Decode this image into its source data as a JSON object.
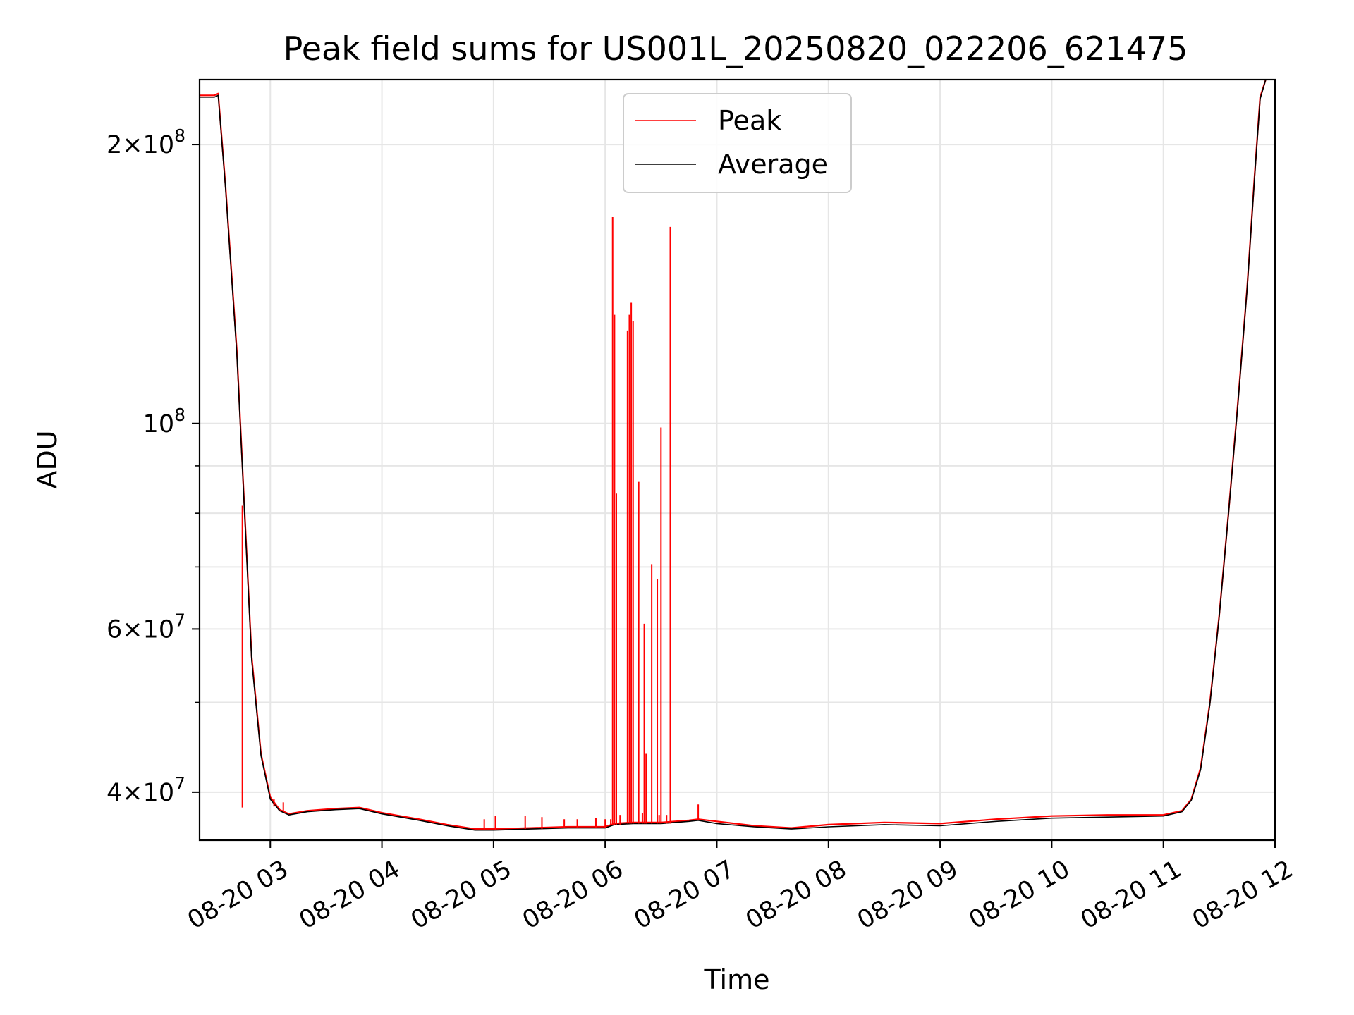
{
  "chart_data": {
    "type": "line",
    "title": "Peak field sums for US001L_20250820_022206_621475",
    "xlabel": "Time",
    "ylabel": "ADU",
    "y_scale": "log",
    "grid": true,
    "legend_position": "top-center",
    "xlim": [
      "08-20 02:22",
      "08-20 12:00"
    ],
    "ylim": [
      35500000,
      235000000
    ],
    "x_ticks": [
      "08-20 03",
      "08-20 04",
      "08-20 05",
      "08-20 06",
      "08-20 07",
      "08-20 08",
      "08-20 09",
      "08-20 10",
      "08-20 11",
      "08-20 12"
    ],
    "y_ticks": [
      {
        "value": 200000000,
        "mantissa": "2",
        "exponent": "8"
      },
      {
        "value": 100000000,
        "mantissa": "",
        "exponent": "8"
      },
      {
        "value": 60000000,
        "mantissa": "6",
        "exponent": "7"
      },
      {
        "value": 40000000,
        "mantissa": "4",
        "exponent": "7"
      }
    ],
    "series": [
      {
        "name": "Peak",
        "color": "#ff0000",
        "x": [
          "08-20 02:22",
          "08-20 02:30",
          "08-20 02:32",
          "08-20 02:36",
          "08-20 02:42",
          "08-20 02:46",
          "08-20 02:50",
          "08-20 02:55",
          "08-20 03:00",
          "08-20 03:05",
          "08-20 03:10",
          "08-20 03:20",
          "08-20 03:35",
          "08-20 03:48",
          "08-20 04:00",
          "08-20 04:10",
          "08-20 04:20",
          "08-20 04:35",
          "08-20 04:50",
          "08-20 05:00",
          "08-20 05:20",
          "08-20 05:40",
          "08-20 05:55",
          "08-20 06:00",
          "08-20 06:05",
          "08-20 06:15",
          "08-20 06:30",
          "08-20 06:45",
          "08-20 06:50",
          "08-20 07:00",
          "08-20 07:20",
          "08-20 07:40",
          "08-20 08:00",
          "08-20 08:30",
          "08-20 09:00",
          "08-20 09:30",
          "08-20 10:00",
          "08-20 10:30",
          "08-20 11:00",
          "08-20 11:10",
          "08-20 11:15",
          "08-20 11:20",
          "08-20 11:25",
          "08-20 11:30",
          "08-20 11:35",
          "08-20 11:40",
          "08-20 11:45",
          "08-20 11:49",
          "08-20 11:52",
          "08-20 11:55"
        ],
        "y": [
          226000000,
          226000000,
          227000000,
          180000000,
          120000000,
          82000000,
          56000000,
          44000000,
          39500000,
          38300000,
          37900000,
          38200000,
          38400000,
          38500000,
          38000000,
          37700000,
          37400000,
          36900000,
          36500000,
          36500000,
          36600000,
          36700000,
          36700000,
          36700000,
          37000000,
          37100000,
          37100000,
          37300000,
          37400000,
          37200000,
          36800000,
          36600000,
          36900000,
          37100000,
          37000000,
          37400000,
          37700000,
          37800000,
          37800000,
          38200000,
          39300000,
          42500000,
          50000000,
          62000000,
          80000000,
          105000000,
          140000000,
          185000000,
          225000000,
          235000000
        ]
      },
      {
        "name": "Average",
        "color": "#000000",
        "x": [
          "08-20 02:22",
          "08-20 02:30",
          "08-20 02:32",
          "08-20 02:36",
          "08-20 02:42",
          "08-20 02:46",
          "08-20 02:50",
          "08-20 02:55",
          "08-20 03:00",
          "08-20 03:05",
          "08-20 03:10",
          "08-20 03:20",
          "08-20 03:35",
          "08-20 03:48",
          "08-20 04:00",
          "08-20 04:10",
          "08-20 04:20",
          "08-20 04:35",
          "08-20 04:50",
          "08-20 05:00",
          "08-20 05:20",
          "08-20 05:40",
          "08-20 05:55",
          "08-20 06:00",
          "08-20 06:05",
          "08-20 06:15",
          "08-20 06:30",
          "08-20 06:45",
          "08-20 06:50",
          "08-20 07:00",
          "08-20 07:20",
          "08-20 07:40",
          "08-20 08:00",
          "08-20 08:30",
          "08-20 09:00",
          "08-20 09:30",
          "08-20 10:00",
          "08-20 10:30",
          "08-20 11:00",
          "08-20 11:10",
          "08-20 11:15",
          "08-20 11:20",
          "08-20 11:25",
          "08-20 11:30",
          "08-20 11:35",
          "08-20 11:40",
          "08-20 11:45",
          "08-20 11:49",
          "08-20 11:52",
          "08-20 11:55"
        ],
        "y": [
          225000000,
          225000000,
          226000000,
          179000000,
          119000000,
          81500000,
          55500000,
          43800000,
          39300000,
          38200000,
          37800000,
          38100000,
          38300000,
          38400000,
          37900000,
          37600000,
          37300000,
          36800000,
          36400000,
          36400000,
          36500000,
          36600000,
          36600000,
          36600000,
          36900000,
          37000000,
          37000000,
          37200000,
          37300000,
          37000000,
          36700000,
          36500000,
          36700000,
          36900000,
          36800000,
          37200000,
          37500000,
          37600000,
          37700000,
          38100000,
          39200000,
          42300000,
          49800000,
          61800000,
          79800000,
          104500000,
          139500000,
          184000000,
          224000000,
          235000000
        ]
      }
    ],
    "spikes": {
      "series": "Peak",
      "x": [
        "08-20 02:45",
        "08-20 03:02",
        "08-20 03:07",
        "08-20 04:55",
        "08-20 05:01",
        "08-20 05:17",
        "08-20 05:26",
        "08-20 05:38",
        "08-20 05:45",
        "08-20 05:55",
        "08-20 06:00",
        "08-20 06:03",
        "08-20 06:04",
        "08-20 06:05",
        "08-20 06:06",
        "08-20 06:08",
        "08-20 06:12",
        "08-20 06:13",
        "08-20 06:14",
        "08-20 06:15",
        "08-20 06:18",
        "08-20 06:20",
        "08-20 06:21",
        "08-20 06:22",
        "08-20 06:25",
        "08-20 06:28",
        "08-20 06:29",
        "08-20 06:30",
        "08-20 06:33",
        "08-20 06:35",
        "08-20 06:50"
      ],
      "y": [
        38500000,
        38600000,
        39000000,
        37400000,
        37700000,
        37700000,
        37600000,
        37400000,
        37400000,
        37500000,
        37400000,
        37400000,
        167000000,
        131000000,
        84000000,
        37800000,
        126000000,
        131000000,
        135000000,
        129000000,
        86500000,
        38000000,
        60800000,
        44000000,
        70500000,
        68000000,
        37800000,
        99000000,
        37800000,
        163000000,
        38800000
      ]
    }
  }
}
